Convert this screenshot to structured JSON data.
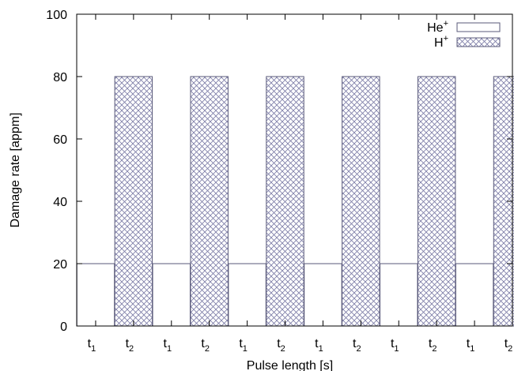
{
  "chart_data": {
    "type": "bar",
    "xlabel": "Pulse length [s]",
    "ylabel": "Damage rate [appm]",
    "ylim": [
      0,
      100
    ],
    "yticks": [
      0,
      20,
      40,
      60,
      80,
      100
    ],
    "categories": [
      {
        "base": "t",
        "sub": "1"
      },
      {
        "base": "t",
        "sub": "2"
      },
      {
        "base": "t",
        "sub": "1"
      },
      {
        "base": "t",
        "sub": "2"
      },
      {
        "base": "t",
        "sub": "1"
      },
      {
        "base": "t",
        "sub": "2"
      },
      {
        "base": "t",
        "sub": "1"
      },
      {
        "base": "t",
        "sub": "2"
      },
      {
        "base": "t",
        "sub": "1"
      },
      {
        "base": "t",
        "sub": "2"
      },
      {
        "base": "t",
        "sub": "1"
      },
      {
        "base": "t",
        "sub": "2"
      }
    ],
    "series": [
      {
        "name": "He",
        "name_sup": "+",
        "fill": "none",
        "values": [
          20,
          null,
          20,
          null,
          20,
          null,
          20,
          null,
          20,
          null,
          20,
          null
        ]
      },
      {
        "name": "H",
        "name_sup": "+",
        "fill": "crosshatch",
        "values": [
          null,
          80,
          null,
          80,
          null,
          80,
          null,
          80,
          null,
          80,
          null,
          80
        ]
      }
    ],
    "legend_position": "top-right",
    "grid": false,
    "colors": {
      "axis": "#000000",
      "bar_outline": "#5a5a7a",
      "hatch": "#7b7ba6"
    }
  }
}
